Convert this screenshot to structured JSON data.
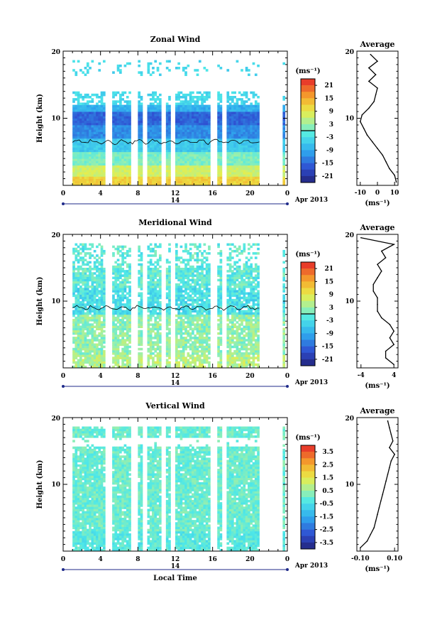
{
  "chart_data": [
    {
      "type": "heatmap",
      "title": "Zonal Wind",
      "ylabel": "Height (km)",
      "ylim": [
        0,
        20
      ],
      "y_ticks": [
        "10",
        "20"
      ],
      "xlim": [
        0,
        24
      ],
      "x_ticks": [
        "0",
        "4",
        "8",
        "12",
        "16",
        "20",
        "0"
      ],
      "date_label": "14",
      "month_label": "Apr 2013",
      "colorbar": {
        "unit": "(ms⁻¹)",
        "ticks": [
          "21",
          "15",
          "9",
          "3",
          "-3",
          "-9",
          "-15",
          "-21"
        ],
        "range": [
          -24,
          24
        ]
      },
      "profile": {
        "title": "Average",
        "xlim": [
          -12,
          12
        ],
        "x_ticks": [
          "-10",
          "0",
          "10"
        ],
        "xlabel": "(ms⁻¹)",
        "y_ticks": [
          "10",
          "20"
        ],
        "heights": [
          0.5,
          1.5,
          2.5,
          3.5,
          4.5,
          5.5,
          6.5,
          7.5,
          8.5,
          9.5,
          10.5,
          11.5,
          12.5,
          13.5,
          14.5,
          15.5,
          16.5,
          17.5,
          18.5,
          19.5
        ],
        "values": [
          11,
          10,
          7,
          5,
          3,
          0,
          -3,
          -6,
          -8,
          -10,
          -9,
          -5,
          -2,
          -1,
          0,
          -5,
          -1,
          -5,
          0,
          -4
        ]
      }
    },
    {
      "type": "heatmap",
      "title": "Meridional Wind",
      "ylabel": "Height (km)",
      "ylim": [
        0,
        20
      ],
      "y_ticks": [
        "10",
        "20"
      ],
      "xlim": [
        0,
        24
      ],
      "x_ticks": [
        "0",
        "4",
        "8",
        "12",
        "16",
        "20",
        "0"
      ],
      "date_label": "14",
      "month_label": "Apr 2013",
      "colorbar": {
        "unit": "(ms⁻¹)",
        "ticks": [
          "21",
          "15",
          "9",
          "3",
          "-3",
          "-9",
          "-15",
          "-21"
        ],
        "range": [
          -24,
          24
        ]
      },
      "profile": {
        "title": "Average",
        "xlim": [
          -5,
          5
        ],
        "x_ticks": [
          "-4",
          "4"
        ],
        "xlabel": "(ms⁻¹)",
        "y_ticks": [
          "10",
          "20"
        ],
        "heights": [
          0.5,
          1.5,
          2.5,
          3.5,
          4.5,
          5.5,
          6.5,
          7.5,
          8.5,
          9.5,
          10.5,
          11.5,
          12.5,
          13.5,
          14.5,
          15.5,
          16.5,
          17.5,
          18.5,
          19.5
        ],
        "values": [
          4,
          2,
          2,
          4,
          3,
          4,
          3,
          1,
          0,
          0,
          0,
          -1,
          -1,
          0,
          1,
          0,
          2,
          1,
          4,
          -4
        ]
      }
    },
    {
      "type": "heatmap",
      "title": "Vertical Wind",
      "ylabel": "Height (km)",
      "xlabel": "Local Time",
      "ylim": [
        0,
        20
      ],
      "y_ticks": [
        "10",
        "20"
      ],
      "xlim": [
        0,
        24
      ],
      "x_ticks": [
        "0",
        "4",
        "8",
        "12",
        "16",
        "20",
        "0"
      ],
      "date_label": "14",
      "month_label": "Apr 2013",
      "colorbar": {
        "unit": "(ms⁻¹)",
        "ticks": [
          "3.5",
          "2.5",
          "1.5",
          "0.5",
          "-0.5",
          "-1.5",
          "-2.5",
          "-3.5"
        ],
        "range": [
          -4,
          4
        ]
      },
      "profile": {
        "title": "Average",
        "xlim": [
          -0.12,
          0.12
        ],
        "x_ticks": [
          "-0.10",
          "0.10"
        ],
        "xlabel": "(ms⁻¹)",
        "y_ticks": [
          "10",
          "20"
        ],
        "heights": [
          0.5,
          1.5,
          2.5,
          3.5,
          4.5,
          5.5,
          6.5,
          7.5,
          8.5,
          9.5,
          10.5,
          11.5,
          12.5,
          13.5,
          14.5,
          15.5,
          16.5,
          17.5,
          18.5,
          19.5
        ],
        "values": [
          -0.1,
          -0.06,
          -0.04,
          -0.02,
          -0.01,
          0.0,
          0.01,
          0.02,
          0.03,
          0.04,
          0.05,
          0.06,
          0.07,
          0.08,
          0.1,
          0.07,
          0.09,
          0.08,
          0.07,
          0.06
        ]
      }
    }
  ]
}
